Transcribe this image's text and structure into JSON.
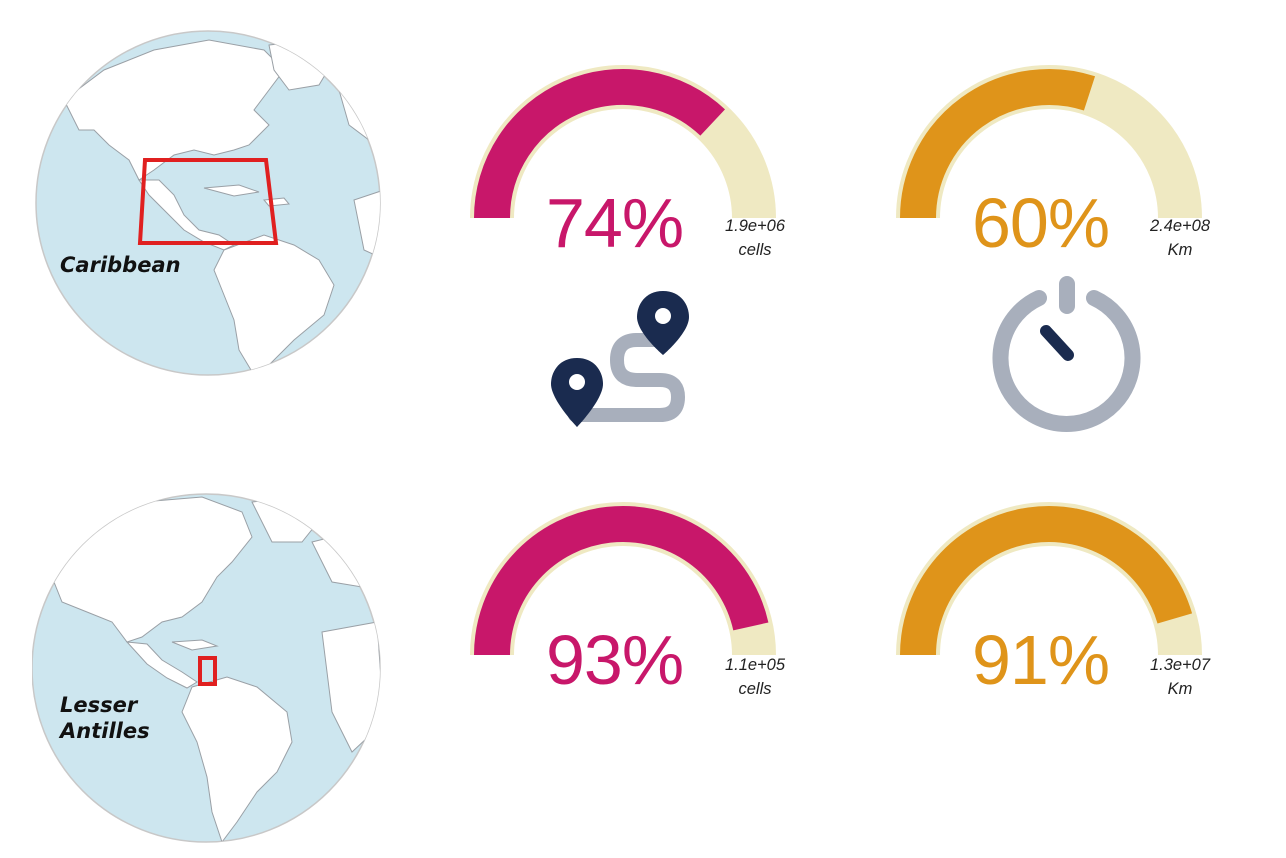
{
  "regions": [
    {
      "label": "Caribbean"
    },
    {
      "label_line1": "Lesser",
      "label_line2": "Antilles"
    }
  ],
  "metrics": [
    {
      "row": "Caribbean",
      "kind": "cells",
      "percent": 74,
      "percent_label": "74%",
      "value": "1.9e+06",
      "unit": "cells",
      "color": "#c8176a"
    },
    {
      "row": "Caribbean",
      "kind": "distance",
      "percent": 60,
      "percent_label": "60%",
      "value": "2.4e+08",
      "unit": "Km",
      "color": "#df941a"
    },
    {
      "row": "Lesser Antilles",
      "kind": "cells",
      "percent": 93,
      "percent_label": "93%",
      "value": "1.1e+05",
      "unit": "cells",
      "color": "#c8176a"
    },
    {
      "row": "Lesser Antilles",
      "kind": "distance",
      "percent": 91,
      "percent_label": "91%",
      "value": "1.3e+07",
      "unit": "Km",
      "color": "#df941a"
    }
  ],
  "icons": [
    "route-map-pins-icon",
    "timer-icon"
  ],
  "colors": {
    "gauge_track": "#efe9c2",
    "ocean": "#cde6ef",
    "land": "#ffffff",
    "box": "#e02020",
    "pin": "#1a2b4f",
    "path": "#a8afbc"
  }
}
